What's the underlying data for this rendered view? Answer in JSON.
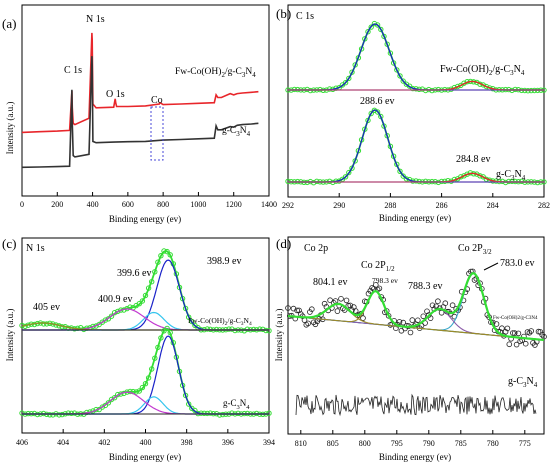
{
  "figure": {
    "colors": {
      "red": "#e8262b",
      "black": "#333333",
      "green": "#33dd33",
      "blue": "#1a22c8",
      "magenta": "#c23ad0",
      "cyan": "#35c5ee",
      "olive": "#9a8a2a",
      "teal": "#3aa6c8",
      "purple": "#8a5aa8"
    }
  },
  "chart_data": [
    {
      "panel": "(a)",
      "type": "line",
      "title": "",
      "xlabel": "Binding energy (ev)",
      "ylabel": "Intensity (a.u.)",
      "xlim": [
        0,
        1400
      ],
      "xticks": [
        0,
        200,
        400,
        600,
        800,
        1000,
        1200,
        1400
      ],
      "xtick_labels": [
        "0",
        "200",
        "400",
        "600",
        "800",
        "1000",
        "1200",
        "1400"
      ],
      "series": [
        {
          "name": "Fw-Co(OH)2/g-C3N4",
          "x": [
            0,
            100,
            200,
            270,
            283,
            285,
            290,
            300,
            380,
            396,
            398,
            402,
            420,
            520,
            528,
            531,
            536,
            600,
            700,
            778,
            782,
            800,
            900,
            1000,
            1090,
            1100,
            1110,
            1130,
            1180,
            1200,
            1220,
            1250,
            1300,
            1340
          ],
          "y": [
            3.3,
            3.35,
            3.4,
            3.45,
            6.5,
            5.2,
            4.0,
            3.9,
            4.4,
            11.0,
            10.5,
            5.5,
            5.2,
            5.25,
            5.9,
            5.6,
            5.3,
            5.3,
            5.35,
            5.5,
            5.6,
            5.45,
            5.5,
            5.55,
            5.6,
            6.2,
            6.0,
            6.0,
            6.3,
            6.2,
            6.3,
            6.35,
            6.4,
            6.45
          ]
        },
        {
          "name": "g-C3N4",
          "x": [
            0,
            100,
            200,
            270,
            283,
            285,
            290,
            300,
            380,
            396,
            398,
            402,
            420,
            520,
            600,
            700,
            800,
            900,
            1000,
            1090,
            1100,
            1110,
            1130,
            1180,
            1200,
            1220,
            1250,
            1300,
            1340
          ],
          "y": [
            0.6,
            0.62,
            0.65,
            0.68,
            6.6,
            4.0,
            1.5,
            1.4,
            1.6,
            9.2,
            8.5,
            2.6,
            2.5,
            2.55,
            2.58,
            2.6,
            2.7,
            2.75,
            2.8,
            2.85,
            3.8,
            3.5,
            3.5,
            3.75,
            3.7,
            3.85,
            3.9,
            3.95,
            4.0
          ]
        }
      ],
      "annotations": [
        "C 1s",
        "N 1s",
        "O 1s",
        "Co",
        "Fw-Co(OH)2/g-C3N4",
        "g-C3N4"
      ]
    },
    {
      "panel": "(b)",
      "type": "line",
      "title": "C 1s",
      "xlabel": "Binding energy (ev)",
      "ylabel": "",
      "xlim": [
        292,
        282
      ],
      "xticks": [
        292,
        290,
        288,
        286,
        284,
        282
      ],
      "xtick_labels": [
        "292",
        "290",
        "288",
        "286",
        "284",
        "282"
      ],
      "peaks_upper": [
        {
          "center": 288.6,
          "height": 1.0,
          "width": 0.55
        },
        {
          "center": 284.8,
          "height": 0.13,
          "width": 0.4
        }
      ],
      "peaks_lower": [
        {
          "center": 288.6,
          "height": 1.0,
          "width": 0.5
        },
        {
          "center": 284.8,
          "height": 0.12,
          "width": 0.4
        }
      ],
      "annotations": [
        "288.6 ev",
        "284.8 ev",
        "Fw-Co(OH)2/g-C3N4",
        "g-C3N4"
      ]
    },
    {
      "panel": "(c)",
      "type": "line",
      "title": "N 1s",
      "xlabel": "Binding energy (ev)",
      "ylabel": "Intensity (a.u.)",
      "xlim": [
        406,
        394
      ],
      "xticks": [
        406,
        404,
        402,
        400,
        398,
        396,
        394
      ],
      "xtick_labels": [
        "406",
        "404",
        "402",
        "400",
        "398",
        "396",
        "394"
      ],
      "peaks_upper": [
        {
          "center": 398.9,
          "height": 1.0,
          "width": 0.55
        },
        {
          "center": 399.6,
          "height": 0.25,
          "width": 0.5
        },
        {
          "center": 400.9,
          "height": 0.3,
          "width": 0.85
        },
        {
          "center": 405.0,
          "height": 0.1,
          "width": 0.9
        }
      ],
      "peaks_lower": [
        {
          "center": 398.9,
          "height": 1.0,
          "width": 0.5
        },
        {
          "center": 399.6,
          "height": 0.22,
          "width": 0.45
        },
        {
          "center": 400.9,
          "height": 0.28,
          "width": 0.8
        }
      ],
      "annotations": [
        "398.9 ev",
        "399.6 ev",
        "400.9 ev",
        "405 ev",
        "Fw-Co(OH)2/g-C3N4",
        "g-C3N4"
      ]
    },
    {
      "panel": "(d)",
      "type": "line",
      "title": "Co 2p",
      "xlabel": "Binding energy (ev)",
      "ylabel": "Intensity (a.u.)",
      "xlim": [
        812,
        772
      ],
      "xticks": [
        810,
        805,
        800,
        795,
        790,
        785,
        780,
        775
      ],
      "xtick_labels": [
        "810",
        "805",
        "800",
        "795",
        "790",
        "785",
        "780",
        "775"
      ],
      "peaks": [
        {
          "center": 783.0,
          "height": 1.0,
          "width": 1.6
        },
        {
          "center": 788.3,
          "height": 0.35,
          "width": 1.8
        },
        {
          "center": 798.3,
          "height": 0.55,
          "width": 1.3
        },
        {
          "center": 804.1,
          "height": 0.28,
          "width": 1.8
        }
      ],
      "annotations": [
        "Co 2P3/2",
        "783.0 ev",
        "Co 2P1/2",
        "798.3 ev",
        "788.3 ev",
        "804.1 ev",
        "Fw-Co(OH)2/g-C3N4",
        "g-C3N4"
      ]
    }
  ],
  "panels": {
    "a": {
      "label": "(a)",
      "ylabel": "Intensity (a.u.)",
      "xlabel": "Binding energy (ev)",
      "c1s": "C 1s",
      "n1s": "N 1s",
      "o1s": "O 1s",
      "co": "Co",
      "fw_label": "Fw-Co(OH)",
      "fw_sub1": "2",
      "fw_mid": "/g-C",
      "fw_sub2": "3",
      "fw_n": "N",
      "fw_sub3": "4",
      "gc_label": "g-C",
      "gc_sub1": "3",
      "gc_n": "N",
      "gc_sub2": "4"
    },
    "b": {
      "label": "(b)",
      "title": "C 1s",
      "xlabel": "Binding energy (ev)",
      "peak1": "288.6 ev",
      "peak2": "284.8 ev",
      "fw_label": "Fw-Co(OH)",
      "fw_sub1": "2",
      "fw_mid": "/g-C",
      "fw_sub2": "3",
      "fw_n": "N",
      "fw_sub3": "4",
      "gc_label": "g-C",
      "gc_sub1": "3",
      "gc_n": "N",
      "gc_sub2": "4"
    },
    "c": {
      "label": "(c)",
      "title": "N 1s",
      "ylabel": "Intensity (a.u.)",
      "xlabel": "Binding energy (ev)",
      "p1": "398.9 ev",
      "p2": "399.6 ev",
      "p3": "400.9 ev",
      "p4": "405 ev",
      "fw_label": "Fw-Co(OH)",
      "fw_sub1": "2",
      "fw_mid": "/g-C",
      "fw_sub2": "3",
      "fw_n": "N",
      "fw_sub3": "4",
      "gc_label": "g-C",
      "gc_sub1": "3",
      "gc_n": "N",
      "gc_sub2": "4"
    },
    "d": {
      "label": "(d)",
      "title": "Co 2p",
      "ylabel": "Intensity (a.u.)",
      "xlabel": "Binding energy (ev)",
      "co32": "Co 2P",
      "co32_sub": "3/2",
      "p783": "783.0 ev",
      "co12": "Co 2P",
      "co12_sub": "1/2",
      "p798": "798.3 ev",
      "p788": "788.3 ev",
      "p804": "804.1 ev",
      "fw_small": "Fw-Co(OH)2/g-C3N4",
      "gc_label": "g-C",
      "gc_sub1": "3",
      "gc_n": "N",
      "gc_sub2": "4"
    }
  }
}
